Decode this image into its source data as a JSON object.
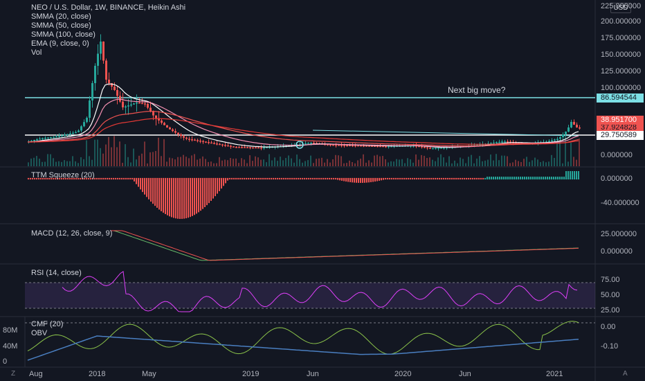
{
  "legend": {
    "title": "NEO / U.S. Dollar, 1W, BINANCE, Heikin Ashi",
    "indicators": [
      "SMMA (20, close)",
      "SMMA (50, close)",
      "SMMA (100, close)",
      "EMA (9, close, 0)",
      "Vol"
    ]
  },
  "annotation": "Next big move?",
  "currency_button": "USD",
  "price_axis": [
    "225.000000",
    "200.000000",
    "175.000000",
    "150.000000",
    "125.000000",
    "100.000000",
    "0.000000"
  ],
  "price_tags": {
    "level_upper": "86.594544",
    "last_price": "38.951700",
    "smma": "37.924828",
    "level_lower": "29.750589"
  },
  "squeeze": {
    "label": "TTM Squeeze (20)",
    "axis": [
      "0.000000",
      "-40.000000"
    ]
  },
  "macd": {
    "label": "MACD (12, 26, close, 9)",
    "axis": [
      "25.000000",
      "0.000000"
    ]
  },
  "rsi": {
    "label": "RSI (14, close)",
    "axis": [
      "75.00",
      "50.00",
      "25.00"
    ]
  },
  "cmf": {
    "labels": [
      "CMF (20)",
      "OBV"
    ],
    "axis": [
      "0.00",
      "-0.10"
    ],
    "left_axis": [
      "80M",
      "40M",
      "0"
    ]
  },
  "time_axis": [
    "Aug",
    "2018",
    "May",
    "2019",
    "Jun",
    "2020",
    "Jun",
    "2021"
  ],
  "corner_left": "Z",
  "corner_right": "A",
  "colors": {
    "background": "#131722",
    "up": "#26a69a",
    "down": "#ef5350",
    "level_line": "#7de0e6",
    "rsi": "#e040fb",
    "cmf": "#8bc34a",
    "obv": "#4a7fc1",
    "macd": "#66bb6a",
    "signal": "#ef5350"
  }
}
